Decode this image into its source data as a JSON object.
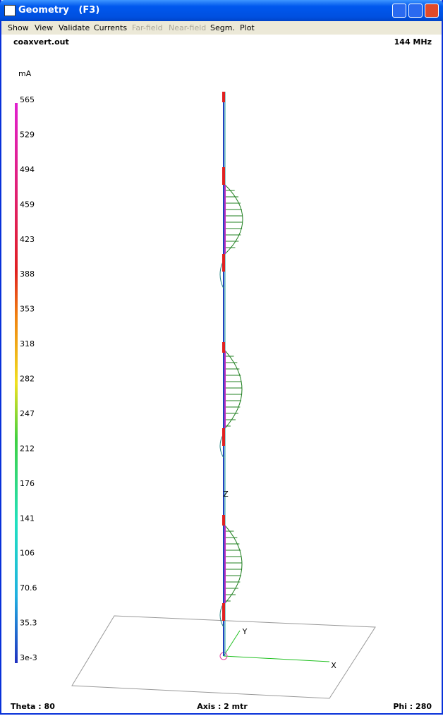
{
  "window": {
    "title": "Geometry   (F3)"
  },
  "menu": [
    "Show",
    "View",
    "Validate",
    "Currents",
    "Far-field",
    "Near-field",
    "Segm.",
    "Plot"
  ],
  "menu_disabled": [
    "Far-field",
    "Near-field"
  ],
  "header": {
    "file": "coaxvert.out",
    "frequency": "144 MHz"
  },
  "scale": {
    "unit": "mA",
    "labels": [
      "565",
      "529",
      "494",
      "459",
      "423",
      "388",
      "353",
      "318",
      "282",
      "247",
      "212",
      "176",
      "141",
      "106",
      "70.6",
      "35.3",
      "3e-3"
    ]
  },
  "axes": {
    "z": "Z",
    "y": "Y",
    "x": "X"
  },
  "footer": {
    "theta": "Theta : 80",
    "axis": "Axis : 2 mtr",
    "phi": "Phi : 280"
  }
}
